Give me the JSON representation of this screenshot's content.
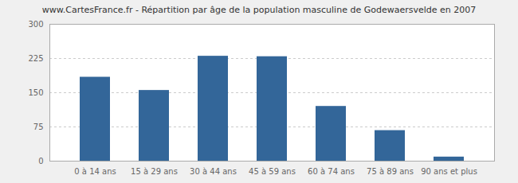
{
  "chart_data": {
    "type": "bar",
    "title": "www.CartesFrance.fr - Répartition par âge de la population masculine de Godewaersvelde en 2007",
    "categories": [
      "0 à 14 ans",
      "15 à 29 ans",
      "30 à 44 ans",
      "45 à 59 ans",
      "60 à 74 ans",
      "75 à 89 ans",
      "90 ans et plus"
    ],
    "values": [
      184,
      155,
      230,
      229,
      120,
      67,
      9
    ],
    "color": "#336699",
    "ylim": [
      0,
      300
    ],
    "yticks": [
      0,
      75,
      150,
      225,
      300
    ],
    "grid": true
  }
}
